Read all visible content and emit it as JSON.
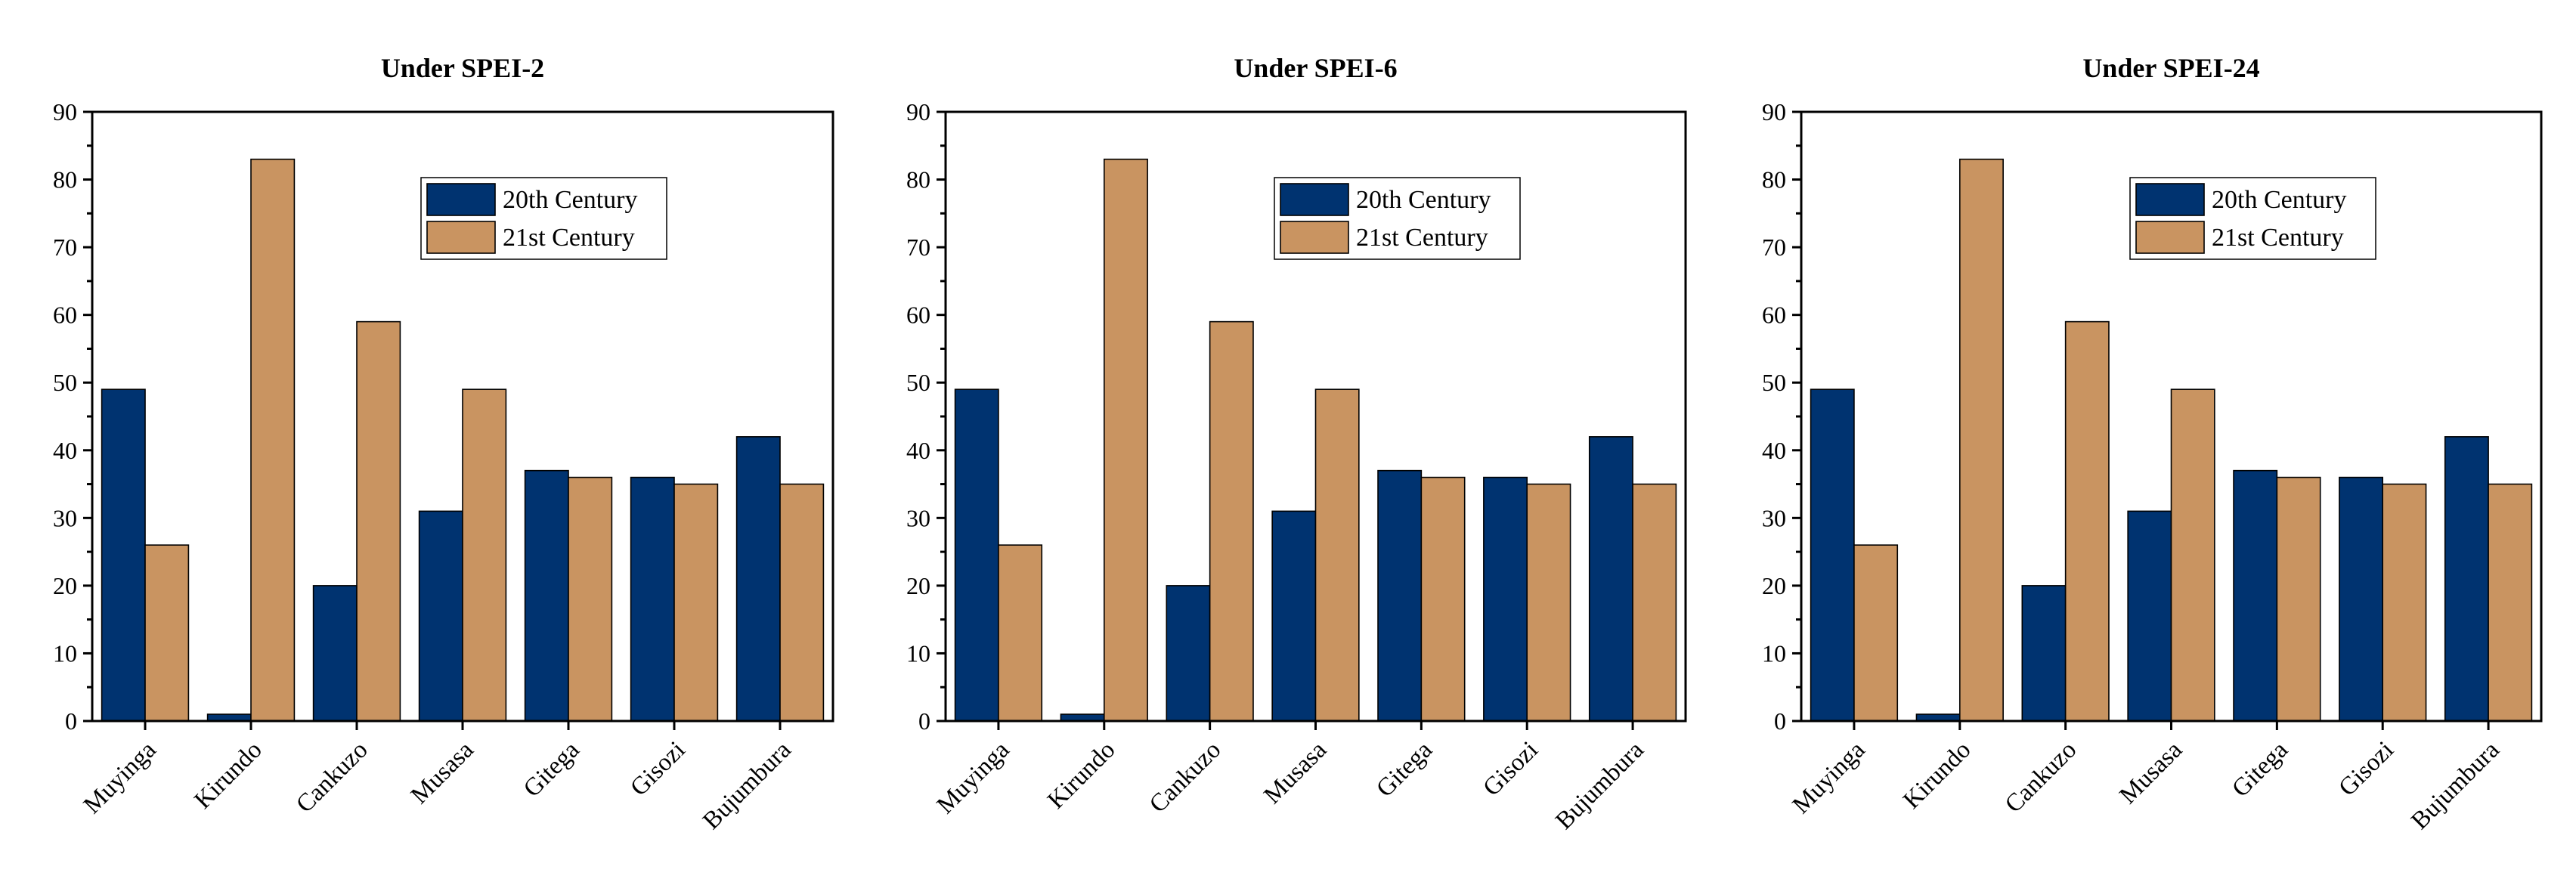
{
  "chart_data": [
    {
      "type": "bar",
      "title": "Under SPEI-2",
      "categories": [
        "Muyinga",
        "Kirundo",
        "Cankuzo",
        "Musasa",
        "Gitega",
        "Gisozi",
        "Bujumbura"
      ],
      "series": [
        {
          "name": "20th Century",
          "values": [
            49,
            1,
            20,
            31,
            37,
            36,
            42
          ],
          "color": "#003370"
        },
        {
          "name": "21st Century",
          "values": [
            26,
            83,
            59,
            49,
            36,
            35,
            35
          ],
          "color": "#C99461"
        }
      ],
      "ylim": [
        0,
        90
      ],
      "yticks": [
        0,
        10,
        20,
        30,
        40,
        50,
        60,
        70,
        80,
        90
      ],
      "xlabel": "",
      "ylabel": "",
      "legend": "top-right",
      "grid": false
    },
    {
      "type": "bar",
      "title": "Under SPEI-6",
      "categories": [
        "Muyinga",
        "Kirundo",
        "Cankuzo",
        "Musasa",
        "Gitega",
        "Gisozi",
        "Bujumbura"
      ],
      "series": [
        {
          "name": "20th Century",
          "values": [
            49,
            1,
            20,
            31,
            37,
            36,
            42
          ],
          "color": "#003370"
        },
        {
          "name": "21st Century",
          "values": [
            26,
            83,
            59,
            49,
            36,
            35,
            35
          ],
          "color": "#C99461"
        }
      ],
      "ylim": [
        0,
        90
      ],
      "yticks": [
        0,
        10,
        20,
        30,
        40,
        50,
        60,
        70,
        80,
        90
      ],
      "xlabel": "",
      "ylabel": "",
      "legend": "top-right",
      "grid": false
    },
    {
      "type": "bar",
      "title": "Under SPEI-24",
      "categories": [
        "Muyinga",
        "Kirundo",
        "Cankuzo",
        "Musasa",
        "Gitega",
        "Gisozi",
        "Bujumbura"
      ],
      "series": [
        {
          "name": "20th Century",
          "values": [
            49,
            1,
            20,
            31,
            37,
            36,
            42
          ],
          "color": "#003370"
        },
        {
          "name": "21st Century",
          "values": [
            26,
            83,
            59,
            49,
            36,
            35,
            35
          ],
          "color": "#C99461"
        }
      ],
      "ylim": [
        0,
        90
      ],
      "yticks": [
        0,
        10,
        20,
        30,
        40,
        50,
        60,
        70,
        80,
        90
      ],
      "xlabel": "",
      "ylabel": "",
      "legend": "top-right",
      "grid": false
    }
  ]
}
